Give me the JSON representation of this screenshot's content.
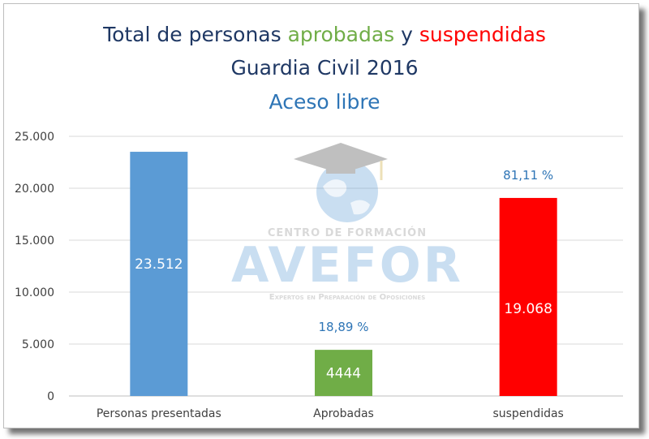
{
  "chart_data": {
    "type": "bar",
    "title_parts": [
      {
        "text": "Total de personas ",
        "color": "#1f3864"
      },
      {
        "text": "aprobadas",
        "color": "#70ad47"
      },
      {
        "text": " y ",
        "color": "#1f3864"
      },
      {
        "text": "suspendidas",
        "color": "#ff0000"
      }
    ],
    "subtitle": "Guardia Civil 2016",
    "subtitle2": "Aceso libre",
    "categories": [
      "Personas presentadas",
      "Aprobadas",
      "suspendidas"
    ],
    "values": [
      23512,
      4444,
      19068
    ],
    "data_labels": [
      "23.512",
      "4444",
      "19.068"
    ],
    "percent_labels": [
      "",
      "18,89 %",
      "81,11 %"
    ],
    "bar_colors": [
      "#5b9bd5",
      "#70ad47",
      "#ff0000"
    ],
    "ylim": [
      0,
      25000
    ],
    "yticks": [
      0,
      5000,
      10000,
      15000,
      20000,
      25000
    ],
    "ytick_labels": [
      "0",
      "5.000",
      "10.000",
      "15.000",
      "20.000",
      "25.000"
    ],
    "grid": true,
    "colors": {
      "title": "#1f3864",
      "subtitle2": "#2e75b6",
      "percent": "#2e75b6",
      "grid": "#d9d9d9",
      "axis_text": "#404040"
    }
  },
  "watermark": {
    "line1": "CENTRO DE FORMACIÓN",
    "brand": "AVEFOR",
    "tagline": "Expertos en Preparación de Oposiciones",
    "icon": "graduation-cap-globe-icon"
  }
}
